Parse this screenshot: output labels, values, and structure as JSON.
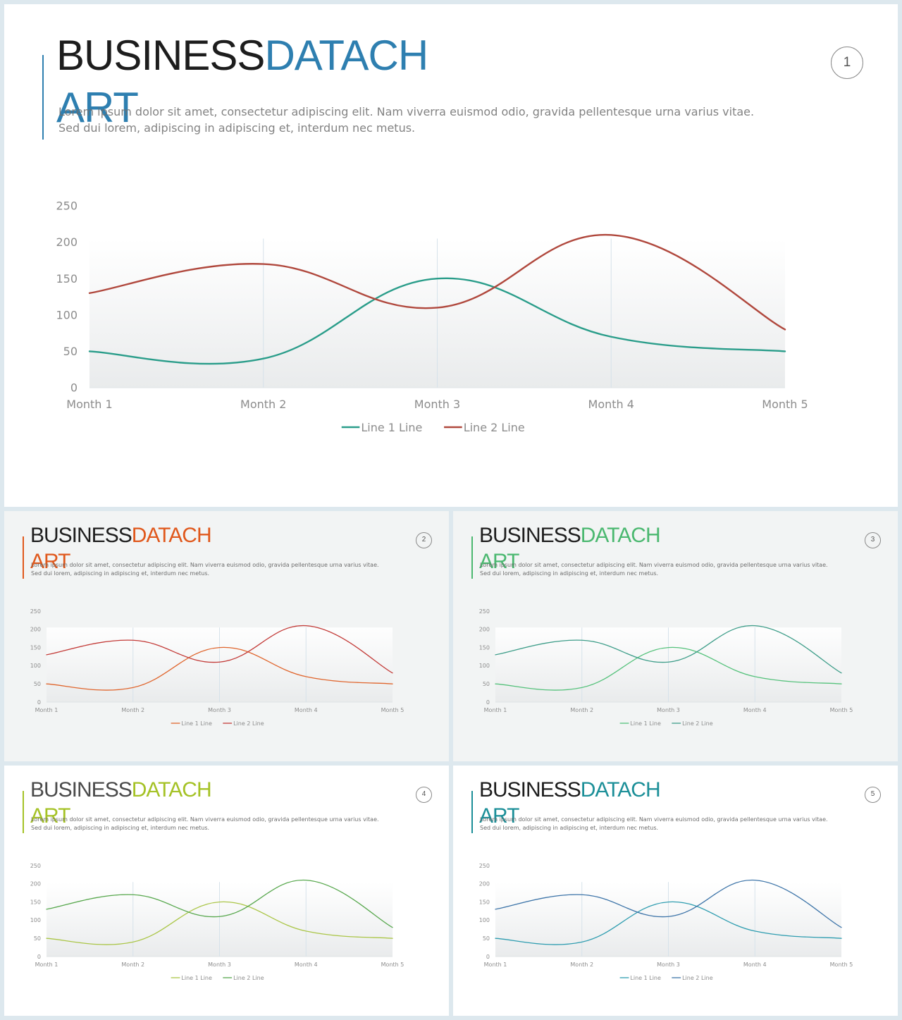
{
  "slides": [
    {
      "id": "main",
      "title_part1": "BUSINESS",
      "title_part2": "DATACH",
      "title_part3": "ART",
      "body": "Lorem ipsum dolor sit amet, consectetur adipiscing elit. Nam viverra euismod odio, gravida pellentesque urna varius vitae. Sed dui lorem, adipiscing in adipiscing et, interdum nec metus.",
      "page_number": "1",
      "accent_color": "#2e7fb0",
      "line1_color": "#2a9d8a",
      "line2_color": "#b0483d"
    },
    {
      "id": "s2",
      "title_part1": "BUSINESS",
      "title_part2": "DATACH",
      "title_part3": "ART",
      "body": "Lorem ipsum dolor sit amet, consectetur adipiscing elit. Nam viverra euismod odio, gravida pellentesque urna varius vitae. Sed dui lorem, adipiscing in adipiscing et, interdum nec metus.",
      "page_number": "2",
      "accent_color": "#e0581c",
      "line1_color": "#e0662e",
      "line2_color": "#c33b38"
    },
    {
      "id": "s3",
      "title_part1": "BUSINESS",
      "title_part2": "DATACH",
      "title_part3": "ART",
      "body": "Lorem ipsum dolor sit amet, consectetur adipiscing elit. Nam viverra euismod odio, gravida pellentesque urna varius vitae. Sed dui lorem, adipiscing in adipiscing et, interdum nec metus.",
      "page_number": "3",
      "accent_color": "#4bb870",
      "line1_color": "#56c27c",
      "line2_color": "#3f9e8a"
    },
    {
      "id": "s4",
      "title_part1": "BUSINESS",
      "title_part2": "DATACH",
      "title_part3": "ART",
      "body": "Lorem ipsum dolor sit amet, consectetur adipiscing elit. Nam viverra euismod odio, gravida pellentesque urna varius vitae. Sed dui lorem, adipiscing in adipiscing et, interdum nec metus.",
      "page_number": "4",
      "accent_color": "#a5c226",
      "line1_color": "#abc648",
      "line2_color": "#58a84e"
    },
    {
      "id": "s5",
      "title_part1": "BUSINESS",
      "title_part2": "DATACH",
      "title_part3": "ART",
      "body": "Lorem ipsum dolor sit amet, consectetur adipiscing elit. Nam viverra euismod odio, gravida pellentesque urna varius vitae. Sed dui lorem, adipiscing in adipiscing et, interdum nec metus.",
      "page_number": "5",
      "accent_color": "#1c8f98",
      "line1_color": "#2f9db0",
      "line2_color": "#3e75a9"
    }
  ],
  "chart_data": [
    {
      "type": "line",
      "smooth": true,
      "categories": [
        "Month 1",
        "Month 2",
        "Month 3",
        "Month 4",
        "Month 5"
      ],
      "series": [
        {
          "name": "Line 1 Line",
          "values": [
            50,
            40,
            150,
            70,
            50
          ]
        },
        {
          "name": "Line 2 Line",
          "values": [
            130,
            170,
            110,
            210,
            80
          ]
        }
      ],
      "ylim": [
        0,
        250
      ],
      "yticks": [
        "0",
        "50",
        "100",
        "150",
        "200",
        "250"
      ],
      "legend": "bottom",
      "grid": "vertical"
    },
    {
      "type": "line",
      "smooth": true,
      "categories": [
        "Month 1",
        "Month 2",
        "Month 3",
        "Month 4",
        "Month 5"
      ],
      "series": [
        {
          "name": "Line 1 Line",
          "values": [
            50,
            40,
            150,
            70,
            50
          ]
        },
        {
          "name": "Line 2 Line",
          "values": [
            130,
            170,
            110,
            210,
            80
          ]
        }
      ],
      "ylim": [
        0,
        250
      ],
      "yticks": [
        "0",
        "50",
        "100",
        "150",
        "200",
        "250"
      ],
      "legend": "bottom",
      "grid": "vertical"
    },
    {
      "type": "line",
      "smooth": true,
      "categories": [
        "Month 1",
        "Month 2",
        "Month 3",
        "Month 4",
        "Month 5"
      ],
      "series": [
        {
          "name": "Line 1 Line",
          "values": [
            50,
            40,
            150,
            70,
            50
          ]
        },
        {
          "name": "Line 2 Line",
          "values": [
            130,
            170,
            110,
            210,
            80
          ]
        }
      ],
      "ylim": [
        0,
        250
      ],
      "yticks": [
        "0",
        "50",
        "100",
        "150",
        "200",
        "250"
      ],
      "legend": "bottom",
      "grid": "vertical"
    },
    {
      "type": "line",
      "smooth": true,
      "categories": [
        "Month 1",
        "Month 2",
        "Month 3",
        "Month 4",
        "Month 5"
      ],
      "series": [
        {
          "name": "Line 1 Line",
          "values": [
            50,
            40,
            150,
            70,
            50
          ]
        },
        {
          "name": "Line 2 Line",
          "values": [
            130,
            170,
            110,
            210,
            80
          ]
        }
      ],
      "ylim": [
        0,
        250
      ],
      "yticks": [
        "0",
        "50",
        "100",
        "150",
        "200",
        "250"
      ],
      "legend": "bottom",
      "grid": "vertical"
    },
    {
      "type": "line",
      "smooth": true,
      "categories": [
        "Month 1",
        "Month 2",
        "Month 3",
        "Month 4",
        "Month 5"
      ],
      "series": [
        {
          "name": "Line 1 Line",
          "values": [
            50,
            40,
            150,
            70,
            50
          ]
        },
        {
          "name": "Line 2 Line",
          "values": [
            130,
            170,
            110,
            210,
            80
          ]
        }
      ],
      "ylim": [
        0,
        250
      ],
      "yticks": [
        "0",
        "50",
        "100",
        "150",
        "200",
        "250"
      ],
      "legend": "bottom",
      "grid": "vertical"
    }
  ]
}
